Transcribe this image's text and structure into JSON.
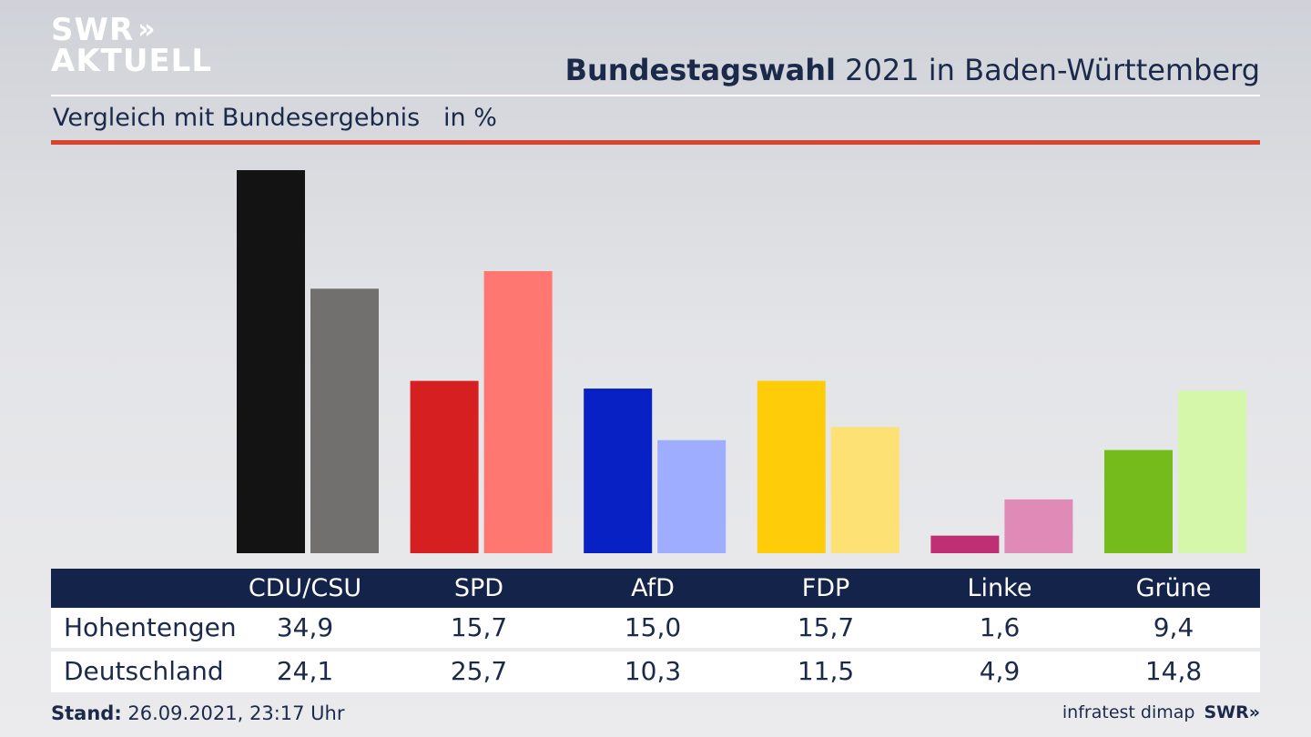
{
  "brand": {
    "line1": "SWR",
    "line2": "AKTUELL",
    "chevrons": "»"
  },
  "title_bold": "Bundestagswahl",
  "title_rest": " 2021 in Baden-Württemberg",
  "subtitle": "Vergleich mit Bundesergebnis   in %",
  "colors": {
    "accent_red": "#d9442f",
    "navy": "#14234a"
  },
  "chart_data": {
    "type": "bar",
    "categories": [
      "CDU/CSU",
      "SPD",
      "AfD",
      "FDP",
      "Linke",
      "Grüne"
    ],
    "series": [
      {
        "name": "Hohentengen",
        "values": [
          34.9,
          15.7,
          15.0,
          15.7,
          1.6,
          9.4
        ],
        "colors": [
          "#131313",
          "#d51f20",
          "#0721c4",
          "#ffcc0a",
          "#bf2f74",
          "#76bb1c"
        ]
      },
      {
        "name": "Deutschland",
        "values": [
          24.1,
          25.7,
          10.3,
          11.5,
          4.9,
          14.8
        ],
        "colors": [
          "#71706e",
          "#ff7770",
          "#9eadff",
          "#fde174",
          "#e08ab8",
          "#d5f7a9"
        ]
      }
    ],
    "ylim": [
      0,
      36
    ]
  },
  "table": {
    "headers": [
      "CDU/CSU",
      "SPD",
      "AfD",
      "FDP",
      "Linke",
      "Grüne"
    ],
    "rows": [
      {
        "label": "Hohentengen",
        "values": [
          "34,9",
          "15,7",
          "15,0",
          "15,7",
          "1,6",
          "9,4"
        ]
      },
      {
        "label": "Deutschland",
        "values": [
          "24,1",
          "25,7",
          "10,3",
          "11,5",
          "4,9",
          "14,8"
        ]
      }
    ]
  },
  "footer": {
    "stand_label": "Stand:",
    "stand_value": " 26.09.2021, 23:17 Uhr",
    "source": "infratest dimap",
    "brand": "SWR»"
  }
}
